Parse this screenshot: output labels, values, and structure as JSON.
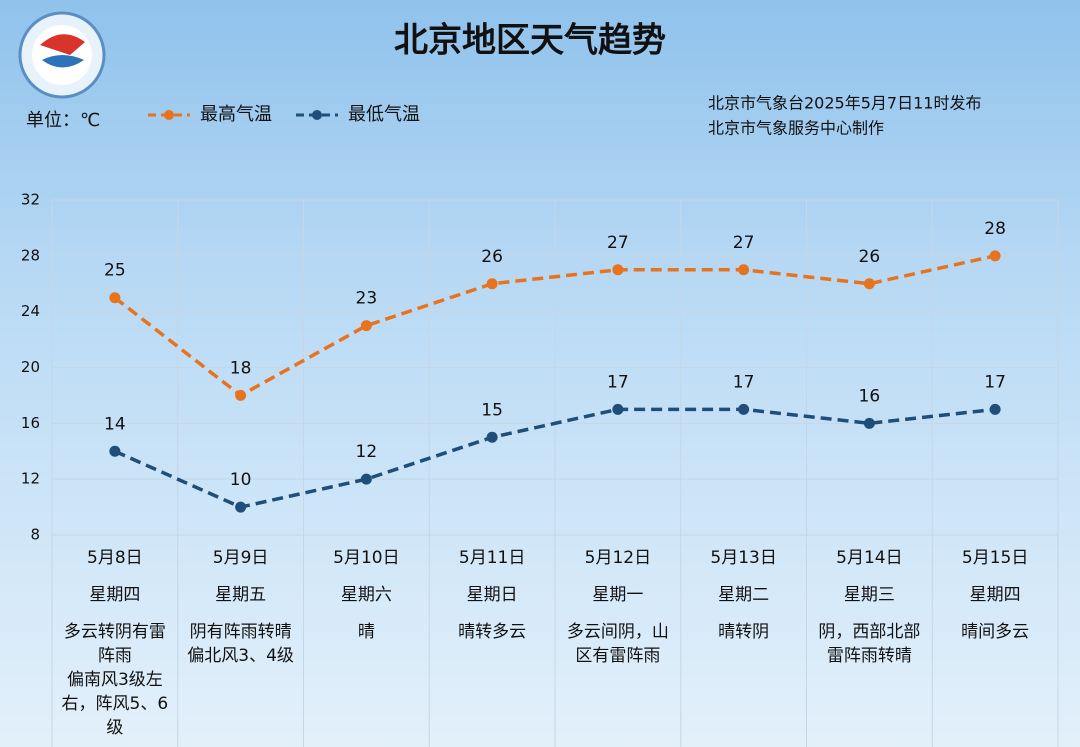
{
  "chart_data": {
    "type": "line",
    "title": "北京地区天气趋势",
    "unit_label": "单位：℃",
    "notes": [
      "北京市气象台2025年5月7日11时发布",
      "北京市气象服务中心制作"
    ],
    "categories": [
      "5月8日",
      "5月9日",
      "5月10日",
      "5月11日",
      "5月12日",
      "5月13日",
      "5月14日",
      "5月15日"
    ],
    "weekdays": [
      "星期四",
      "星期五",
      "星期六",
      "星期日",
      "星期一",
      "星期二",
      "星期三",
      "星期四"
    ],
    "weather": [
      [
        "多云转阴有雷阵雨",
        "偏南风3级左右，阵风5、6级"
      ],
      [
        "阴有阵雨转晴",
        "偏北风3、4级"
      ],
      [
        "晴"
      ],
      [
        "晴转多云"
      ],
      [
        "多云间阴，山区有雷阵雨"
      ],
      [
        "晴转阴"
      ],
      [
        "阴，西部北部雷阵雨转晴"
      ],
      [
        "晴间多云"
      ]
    ],
    "series": [
      {
        "name": "最高气温",
        "color": "#e8731e",
        "values": [
          25,
          18,
          23,
          26,
          27,
          27,
          26,
          28
        ]
      },
      {
        "name": "最低气温",
        "color": "#1f4e79",
        "values": [
          14,
          10,
          12,
          15,
          17,
          17,
          16,
          17
        ]
      }
    ],
    "ylim": [
      8,
      32
    ],
    "yticks": [
      8,
      12,
      16,
      20,
      24,
      28,
      32
    ],
    "grid": true
  }
}
